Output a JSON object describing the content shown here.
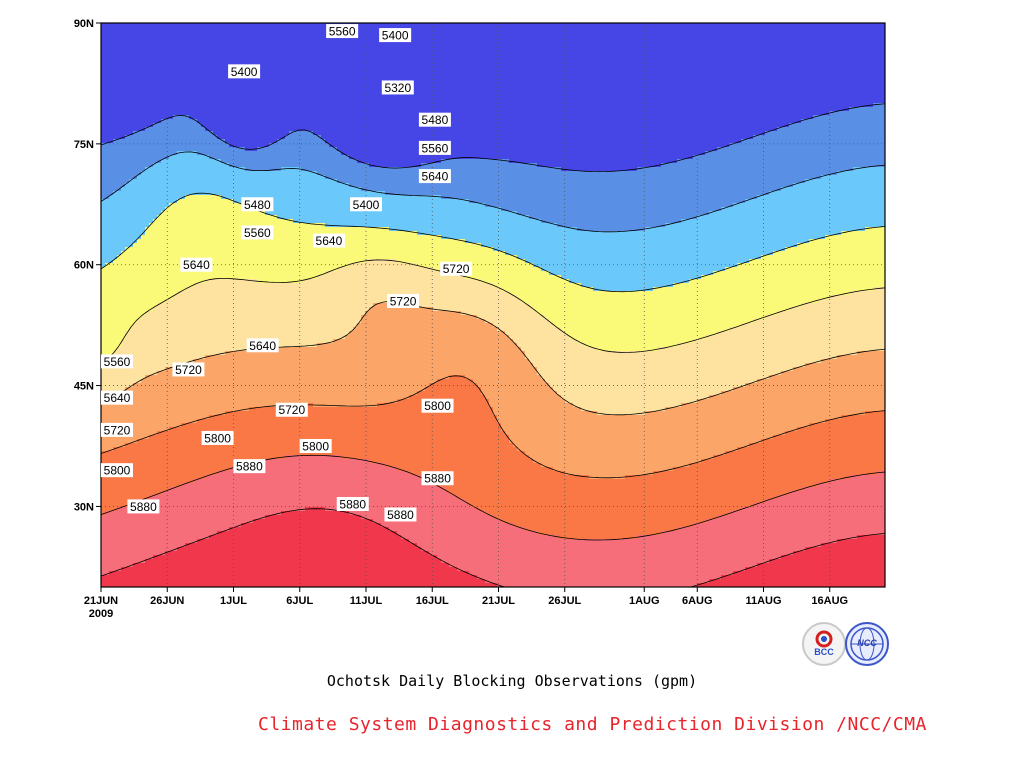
{
  "chart_data": {
    "type": "contour",
    "title": "Ochotsk Daily Blocking Observations (gpm)",
    "footer": "Climate System Diagnostics and Prediction Division /NCC/CMA",
    "x_ticks": [
      "21JUN",
      "26JUN",
      "1JUL",
      "6JUL",
      "11JUL",
      "16JUL",
      "21JUL",
      "26JUL",
      "1AUG",
      "6AUG",
      "11AUG",
      "16AUG"
    ],
    "x_year_label": "2009",
    "y_ticks": [
      "90N",
      "75N",
      "60N",
      "45N",
      "30N"
    ],
    "y_range": [
      20,
      90
    ],
    "levels": [
      5320,
      5400,
      5480,
      5560,
      5640,
      5720,
      5800,
      5880
    ],
    "level_colors": [
      "#4646e6",
      "#5a8fe6",
      "#6ac8fa",
      "#fafa78",
      "#fde2a0",
      "#fca568",
      "#fa7846",
      "#f56e7a",
      "#f0374b"
    ],
    "contour_labels": [
      {
        "text": "5560",
        "day": 18.2,
        "lat": 89
      },
      {
        "text": "5400",
        "day": 10.8,
        "lat": 84
      },
      {
        "text": "5480",
        "day": 11.8,
        "lat": 67.5
      },
      {
        "text": "5560",
        "day": 11.8,
        "lat": 64
      },
      {
        "text": "5400",
        "day": 22.2,
        "lat": 88.5
      },
      {
        "text": "5320",
        "day": 22.4,
        "lat": 82
      },
      {
        "text": "5400",
        "day": 20,
        "lat": 67.5
      },
      {
        "text": "5480",
        "day": 25.2,
        "lat": 78
      },
      {
        "text": "5560",
        "day": 25.2,
        "lat": 74.5
      },
      {
        "text": "5640",
        "day": 25.2,
        "lat": 71
      },
      {
        "text": "5640",
        "day": 17.2,
        "lat": 63
      },
      {
        "text": "5640",
        "day": 7.2,
        "lat": 60
      },
      {
        "text": "5720",
        "day": 26.8,
        "lat": 59.5
      },
      {
        "text": "5720",
        "day": 22.8,
        "lat": 55.5
      },
      {
        "text": "5640",
        "day": 12.2,
        "lat": 50
      },
      {
        "text": "5560",
        "day": 0.3,
        "lat": 48
      },
      {
        "text": "5640",
        "day": 0.3,
        "lat": 43.5
      },
      {
        "text": "5720",
        "day": 0.3,
        "lat": 39.5
      },
      {
        "text": "5720",
        "day": 6.6,
        "lat": 47
      },
      {
        "text": "5720",
        "day": 14.4,
        "lat": 42
      },
      {
        "text": "5800",
        "day": 25.4,
        "lat": 42.5
      },
      {
        "text": "5800",
        "day": 8.8,
        "lat": 38.5
      },
      {
        "text": "5800",
        "day": 16.2,
        "lat": 37.5
      },
      {
        "text": "5800",
        "day": 0.3,
        "lat": 34.5
      },
      {
        "text": "5880",
        "day": 11.2,
        "lat": 35
      },
      {
        "text": "5880",
        "day": 25.4,
        "lat": 33.5
      },
      {
        "text": "5880",
        "day": 3.2,
        "lat": 30
      },
      {
        "text": "5880",
        "day": 19,
        "lat": 30.3
      },
      {
        "text": "5880",
        "day": 22.6,
        "lat": 29
      }
    ],
    "logos": [
      "BCC",
      "NCC"
    ]
  }
}
